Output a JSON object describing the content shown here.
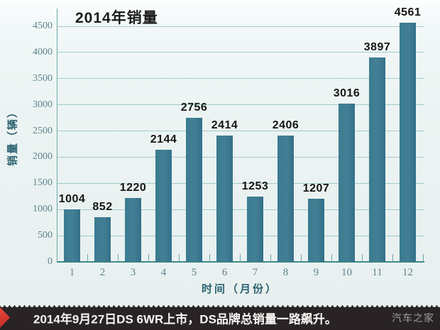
{
  "chart": {
    "title": "2014年销量",
    "y_title": "销量（辆）",
    "x_title": "时间（月份）"
  },
  "chart_data": {
    "type": "bar",
    "title": "2014年销量",
    "xlabel": "时间（月份）",
    "ylabel": "销量（辆）",
    "categories": [
      "1",
      "2",
      "3",
      "4",
      "5",
      "6",
      "7",
      "8",
      "9",
      "10",
      "11",
      "12"
    ],
    "values": [
      1004,
      852,
      1220,
      2144,
      2756,
      2414,
      1253,
      2406,
      1207,
      3016,
      3897,
      4561
    ],
    "ylim": [
      0,
      4500
    ],
    "ytick_step": 500,
    "grid": true,
    "legend_position": "none",
    "bar_color": "#3a7c91"
  },
  "caption": {
    "text": "2014年9月27日DS 6WR上市，DS品牌总销量一路飙升。",
    "watermark": "汽车之家"
  },
  "colors": {
    "background": "#ecf4f3",
    "bar": "#3a7c91",
    "gridline": "#a3cbc9",
    "axis": "#3e8a89",
    "tick_label": "#5f838c",
    "axis_title": "#2d6372",
    "caption_bg": "#292326",
    "caption_text": "#f6f4f1",
    "accent_red": "#cf3128",
    "watermark": "#9d9d9d"
  }
}
